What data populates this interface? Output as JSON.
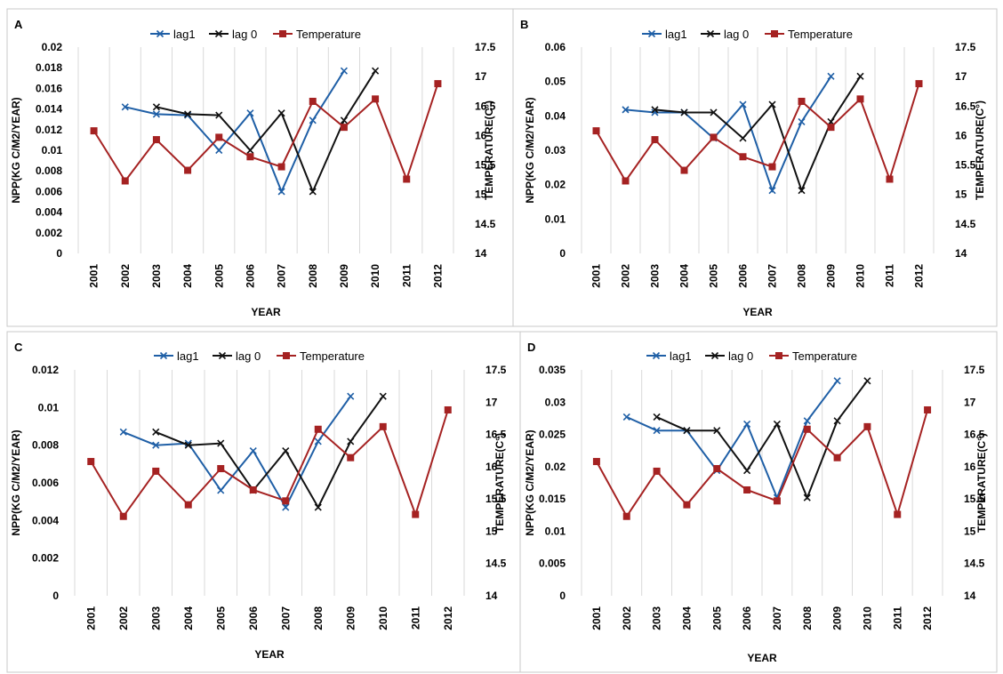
{
  "colors": {
    "lag1": "#1f5fa6",
    "lag0": "#111111",
    "temperature": "#a52222"
  },
  "legend": [
    "lag1",
    "lag 0",
    "Temperature"
  ],
  "chart_data": [
    {
      "panel": "A",
      "type": "line",
      "x": [
        "2001",
        "2002",
        "2003",
        "2004",
        "2005",
        "2006",
        "2007",
        "2008",
        "2009",
        "2010",
        "2011",
        "2012"
      ],
      "xlabel": "YEAR",
      "ylabel": "NPP(KG C/M2/YEAR)",
      "y2label": "TEMPERATURE(C°)",
      "ylim": [
        0,
        0.02
      ],
      "yticks": [
        "0",
        "0.002",
        "0.004",
        "0.006",
        "0.008",
        "0.01",
        "0.012",
        "0.014",
        "0.016",
        "0.018",
        "0.02"
      ],
      "y2lim": [
        14,
        17.5
      ],
      "y2ticks": [
        "14",
        "14.5",
        "15",
        "15.5",
        "16",
        "16.5",
        "17",
        "17.5"
      ],
      "series": [
        {
          "name": "lag1",
          "axis": "left",
          "values": [
            null,
            0.0142,
            0.0135,
            0.0134,
            0.01,
            0.0136,
            0.006,
            0.0129,
            0.0177,
            null,
            null,
            null
          ]
        },
        {
          "name": "lag 0",
          "axis": "left",
          "values": [
            null,
            null,
            0.0142,
            0.0135,
            0.0134,
            0.01,
            0.0136,
            0.006,
            0.0129,
            0.0177,
            null,
            null
          ]
        },
        {
          "name": "Temperature",
          "axis": "right",
          "values": [
            16.08,
            15.23,
            15.93,
            15.41,
            15.97,
            15.64,
            15.47,
            16.58,
            16.14,
            16.62,
            15.26,
            16.88
          ]
        }
      ]
    },
    {
      "panel": "B",
      "type": "line",
      "x": [
        "2001",
        "2002",
        "2003",
        "2004",
        "2005",
        "2006",
        "2007",
        "2008",
        "2009",
        "2010",
        "2011",
        "2012"
      ],
      "xlabel": "YEAR",
      "ylabel": "NPP(KG C/M2/YEAR)",
      "y2label": "TEMPERATURE(C°)",
      "ylim": [
        0,
        0.06
      ],
      "yticks": [
        "0",
        "0.01",
        "0.02",
        "0.03",
        "0.04",
        "0.05",
        "0.06"
      ],
      "y2lim": [
        14,
        17.5
      ],
      "y2ticks": [
        "14",
        "14.5",
        "15",
        "15.5",
        "16",
        "16.5",
        "17",
        "17.5"
      ],
      "series": [
        {
          "name": "lag1",
          "axis": "left",
          "values": [
            null,
            0.0418,
            0.041,
            0.041,
            0.0335,
            0.0433,
            0.0183,
            0.0383,
            0.0515,
            null,
            null,
            null
          ]
        },
        {
          "name": "lag 0",
          "axis": "left",
          "values": [
            null,
            null,
            0.0418,
            0.041,
            0.041,
            0.0335,
            0.0433,
            0.0183,
            0.0383,
            0.0515,
            null,
            null
          ]
        },
        {
          "name": "Temperature",
          "axis": "right",
          "values": [
            16.08,
            15.23,
            15.93,
            15.41,
            15.97,
            15.64,
            15.47,
            16.58,
            16.14,
            16.62,
            15.26,
            16.88
          ]
        }
      ]
    },
    {
      "panel": "C",
      "type": "line",
      "x": [
        "2001",
        "2002",
        "2003",
        "2004",
        "2005",
        "2006",
        "2007",
        "2008",
        "2009",
        "2010",
        "2011",
        "2012"
      ],
      "xlabel": "YEAR",
      "ylabel": "NPP(KG C/M2/YEAR)",
      "y2label": "TEMPERATURE(C°)",
      "ylim": [
        0,
        0.012
      ],
      "yticks": [
        "0",
        "0.002",
        "0.004",
        "0.006",
        "0.008",
        "0.01",
        "0.012"
      ],
      "y2lim": [
        14,
        17.5
      ],
      "y2ticks": [
        "14",
        "14.5",
        "15",
        "15.5",
        "16",
        "16.5",
        "17",
        "17.5"
      ],
      "series": [
        {
          "name": "lag1",
          "axis": "left",
          "values": [
            null,
            0.0087,
            0.008,
            0.0081,
            0.0056,
            0.0077,
            0.0047,
            0.0082,
            0.0106,
            null,
            null,
            null
          ]
        },
        {
          "name": "lag 0",
          "axis": "left",
          "values": [
            null,
            null,
            0.0087,
            0.008,
            0.0081,
            0.0056,
            0.0077,
            0.0047,
            0.0082,
            0.0106,
            null,
            null
          ]
        },
        {
          "name": "Temperature",
          "axis": "right",
          "values": [
            16.08,
            15.23,
            15.93,
            15.41,
            15.97,
            15.64,
            15.47,
            16.58,
            16.14,
            16.62,
            15.26,
            16.88
          ]
        }
      ]
    },
    {
      "panel": "D",
      "type": "line",
      "x": [
        "2001",
        "2002",
        "2003",
        "2004",
        "2005",
        "2006",
        "2007",
        "2008",
        "2009",
        "2010",
        "2011",
        "2012"
      ],
      "xlabel": "YEAR",
      "ylabel": "NPP(KG C/M2/YEAR)",
      "y2label": "TEMPERATURE(C°)",
      "ylim": [
        0,
        0.035
      ],
      "yticks": [
        "0",
        "0.005",
        "0.01",
        "0.015",
        "0.02",
        "0.025",
        "0.03",
        "0.035"
      ],
      "y2lim": [
        14,
        17.5
      ],
      "y2ticks": [
        "14",
        "14.5",
        "15",
        "15.5",
        "16",
        "16.5",
        "17",
        "17.5"
      ],
      "series": [
        {
          "name": "lag1",
          "axis": "left",
          "values": [
            null,
            0.0277,
            0.0256,
            0.0256,
            0.0194,
            0.0266,
            0.0152,
            0.0271,
            0.0333,
            null,
            null,
            null
          ]
        },
        {
          "name": "lag 0",
          "axis": "left",
          "values": [
            null,
            null,
            0.0277,
            0.0256,
            0.0256,
            0.0194,
            0.0266,
            0.0152,
            0.0271,
            0.0333,
            null,
            null
          ]
        },
        {
          "name": "Temperature",
          "axis": "right",
          "values": [
            16.08,
            15.23,
            15.93,
            15.41,
            15.97,
            15.64,
            15.47,
            16.58,
            16.14,
            16.62,
            15.26,
            16.88
          ]
        }
      ]
    }
  ]
}
